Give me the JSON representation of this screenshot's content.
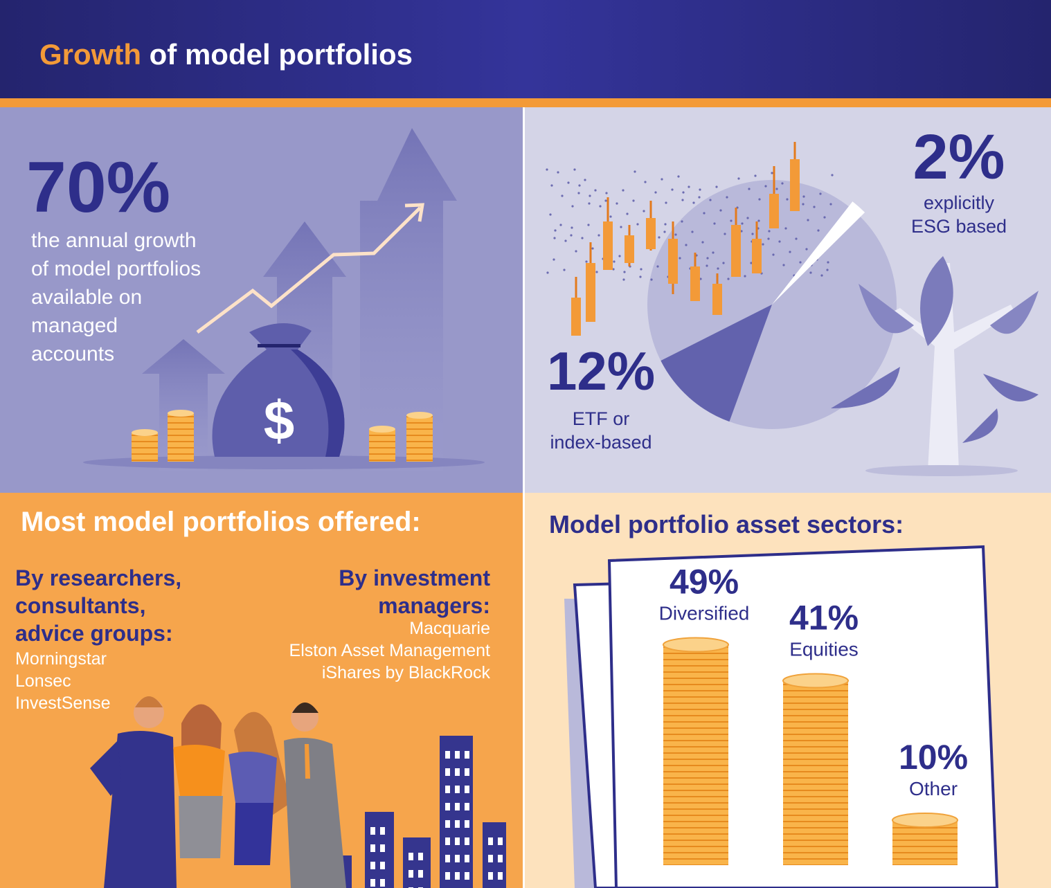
{
  "header": {
    "title_highlight": "Growth",
    "title_rest": "of model portfolios"
  },
  "growth": {
    "value_label": "70%",
    "description": [
      "the annual growth",
      "of model portfolios",
      "available on",
      "managed",
      "accounts"
    ]
  },
  "shares": [
    {
      "value": 2,
      "label": "2%",
      "description": [
        "explicitly",
        "ESG based"
      ]
    },
    {
      "value": 12,
      "label": "12%",
      "description": [
        "ETF or",
        "index-based"
      ]
    }
  ],
  "offered": {
    "title": "Most model portfolios offered:",
    "groups": [
      {
        "heading": [
          "By researchers,",
          "consultants,",
          "advice groups:"
        ],
        "items": [
          "Morningstar",
          "Lonsec",
          "InvestSense"
        ]
      },
      {
        "heading": [
          "By investment",
          "managers:"
        ],
        "items": [
          "Macquarie",
          "Elston Asset Management",
          "iShares by BlackRock"
        ]
      }
    ]
  },
  "sectors": {
    "title": "Model portfolio asset sectors:",
    "items": [
      {
        "value": 49,
        "label": "49%",
        "name": "Diversified"
      },
      {
        "value": 41,
        "label": "41%",
        "name": "Equities"
      },
      {
        "value": 10,
        "label": "10%",
        "name": "Other"
      }
    ]
  }
}
